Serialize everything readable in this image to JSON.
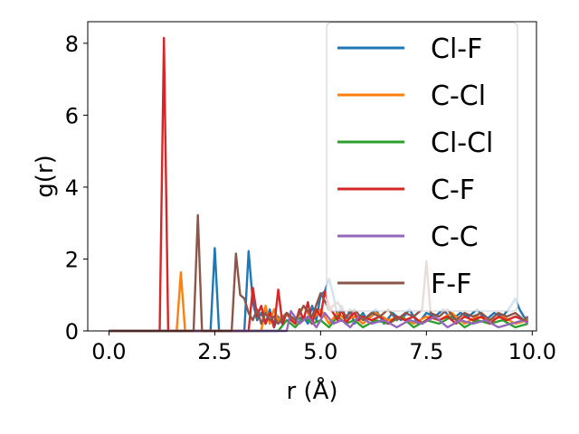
{
  "chart_data": {
    "type": "line",
    "title": "",
    "xlabel": "r (Å)",
    "ylabel": "g(r)",
    "xlim": [
      -0.5,
      10.1
    ],
    "ylim": [
      0,
      8.6
    ],
    "xticks": [
      0.0,
      2.5,
      5.0,
      7.5,
      10.0
    ],
    "xtick_labels": [
      "0.0",
      "2.5",
      "5.0",
      "7.5",
      "10.0"
    ],
    "yticks": [
      0,
      2,
      4,
      6,
      8
    ],
    "ytick_labels": [
      "0",
      "2",
      "4",
      "6",
      "8"
    ],
    "grid": false,
    "legend_position": "top-right",
    "series": [
      {
        "name": "Cl-F",
        "color": "#1f77b4",
        "x": [
          0,
          2.4,
          2.5,
          2.6,
          3.2,
          3.3,
          3.4,
          3.5,
          3.6,
          3.7,
          3.8,
          3.9,
          4.0,
          4.1,
          4.2,
          4.4,
          4.6,
          4.7,
          4.8,
          4.9,
          5.0,
          5.1,
          5.2,
          5.3,
          5.4,
          5.5,
          5.6,
          5.7,
          5.8,
          6.0,
          6.1,
          6.3,
          6.5,
          6.7,
          6.9,
          7.1,
          7.3,
          7.5,
          7.7,
          7.9,
          8.1,
          8.3,
          8.5,
          8.7,
          8.9,
          9.1,
          9.3,
          9.5,
          9.6,
          9.7,
          9.8,
          9.9
        ],
        "y": [
          0,
          0,
          2.3,
          0,
          0,
          2.22,
          0.8,
          0.3,
          0.5,
          0.2,
          0.6,
          0.1,
          0.4,
          0.2,
          0.5,
          0.3,
          0.4,
          0.2,
          0.7,
          0.3,
          1.0,
          1.1,
          1.45,
          1.0,
          0.4,
          0.7,
          0.3,
          0.6,
          0.2,
          0.5,
          0.3,
          0.6,
          0.2,
          0.5,
          0.3,
          0.6,
          0.2,
          0.5,
          0.4,
          0.6,
          0.3,
          0.5,
          0.4,
          0.6,
          0.3,
          0.5,
          0.4,
          0.7,
          0.9,
          0.6,
          0.4,
          0.3
        ]
      },
      {
        "name": "C-Cl",
        "color": "#ff7f0e",
        "x": [
          0,
          1.6,
          1.7,
          1.8,
          3.6,
          3.7,
          3.8,
          3.9,
          4.0,
          4.2,
          4.4,
          4.6,
          4.8,
          5.0,
          5.2,
          5.4,
          5.6,
          5.8,
          6.0,
          6.3,
          6.6,
          6.9,
          7.2,
          7.5,
          7.8,
          8.1,
          8.4,
          8.7,
          9.0,
          9.3,
          9.6,
          9.9
        ],
        "y": [
          0,
          0,
          1.63,
          0,
          0,
          0.7,
          0.2,
          0.6,
          0.3,
          0.5,
          0.2,
          0.7,
          0.3,
          0.6,
          0.2,
          0.5,
          0.3,
          0.4,
          0.2,
          0.5,
          0.3,
          0.4,
          0.2,
          0.4,
          0.3,
          0.5,
          0.2,
          0.4,
          0.3,
          0.4,
          0.2,
          0.3
        ]
      },
      {
        "name": "Cl-Cl",
        "color": "#2ca02c",
        "x": [
          0,
          4.0,
          4.2,
          4.4,
          4.6,
          4.8,
          5.0,
          5.2,
          5.4,
          5.6,
          5.8,
          6.0,
          6.3,
          6.6,
          6.9,
          7.2,
          7.5,
          7.8,
          8.1,
          8.4,
          8.7,
          9.0,
          9.3,
          9.6,
          9.9
        ],
        "y": [
          0,
          0,
          0.3,
          0.1,
          0.4,
          0.2,
          0.3,
          0.1,
          0.4,
          0.2,
          0.3,
          0.1,
          0.3,
          0.2,
          0.4,
          0.1,
          0.3,
          0.2,
          0.4,
          0.1,
          0.3,
          0.2,
          0.3,
          0.1,
          0.2
        ]
      },
      {
        "name": "C-F",
        "color": "#d62728",
        "x": [
          0,
          1.2,
          1.3,
          1.4,
          3.3,
          3.4,
          3.5,
          3.6,
          3.7,
          3.8,
          3.9,
          4.0,
          4.1,
          4.2,
          4.3,
          4.4,
          4.5,
          4.6,
          4.7,
          4.8,
          4.9,
          5.0,
          5.1,
          5.2,
          5.3,
          5.4,
          5.5,
          5.6,
          5.7,
          5.8,
          5.9,
          6.0,
          6.2,
          6.4,
          6.6,
          6.8,
          7.0,
          7.2,
          7.4,
          7.6,
          7.8,
          8.0,
          8.2,
          8.4,
          8.6,
          8.8,
          9.0,
          9.2,
          9.4,
          9.6,
          9.8,
          9.9
        ],
        "y": [
          0,
          0,
          8.15,
          0,
          0,
          1.2,
          0.4,
          0.7,
          0.2,
          0.5,
          0.1,
          1.15,
          0.2,
          0.5,
          0.3,
          0.2,
          0.6,
          0.3,
          0.8,
          0.2,
          0.6,
          0.4,
          1.1,
          0.7,
          0.5,
          0.3,
          0.6,
          0.2,
          0.4,
          0.5,
          0.3,
          0.4,
          0.3,
          0.4,
          0.2,
          0.4,
          0.3,
          0.4,
          0.2,
          0.4,
          0.3,
          0.4,
          0.2,
          0.4,
          0.3,
          0.4,
          0.2,
          0.4,
          0.3,
          0.4,
          0.3,
          0.25
        ]
      },
      {
        "name": "C-C",
        "color": "#9467bd",
        "x": [
          0,
          4.2,
          4.3,
          4.5,
          4.7,
          4.9,
          5.1,
          5.3,
          5.5,
          5.7,
          5.9,
          6.2,
          6.5,
          6.8,
          7.1,
          7.4,
          7.7,
          8.0,
          8.3,
          8.6,
          8.9,
          9.2,
          9.5,
          9.8,
          9.9
        ],
        "y": [
          0,
          0,
          0.55,
          0.2,
          0.4,
          0.1,
          0.5,
          0.2,
          0.3,
          0.1,
          0.4,
          0.2,
          0.3,
          0.1,
          0.3,
          0.2,
          0.4,
          0.1,
          0.3,
          0.2,
          0.3,
          0.1,
          0.2,
          0.3,
          0.2
        ]
      },
      {
        "name": "F-F",
        "color": "#8c564b",
        "x": [
          0,
          2.0,
          2.1,
          2.2,
          2.9,
          3.0,
          3.1,
          3.2,
          3.3,
          3.4,
          3.5,
          3.6,
          3.7,
          3.8,
          3.9,
          4.0,
          4.2,
          4.4,
          4.6,
          4.8,
          5.0,
          5.2,
          5.4,
          5.6,
          5.8,
          6.0,
          6.2,
          6.4,
          6.6,
          6.8,
          7.0,
          7.2,
          7.4,
          7.5,
          7.6,
          7.8,
          8.0,
          8.2,
          8.4,
          8.6,
          8.8,
          9.0,
          9.2,
          9.4,
          9.6,
          9.8,
          9.9
        ],
        "y": [
          0,
          0,
          3.22,
          0,
          0,
          2.15,
          1.0,
          0.9,
          0.5,
          0.3,
          0.6,
          0.2,
          0.5,
          0.3,
          0.4,
          0.2,
          0.5,
          0.3,
          0.7,
          0.4,
          1.05,
          0.6,
          0.8,
          0.4,
          0.6,
          0.3,
          0.5,
          0.4,
          0.6,
          0.3,
          0.5,
          0.4,
          0.6,
          1.93,
          0.5,
          0.4,
          0.6,
          0.3,
          0.5,
          0.4,
          0.5,
          0.3,
          0.5,
          0.4,
          0.5,
          0.3,
          0.4
        ]
      }
    ]
  }
}
